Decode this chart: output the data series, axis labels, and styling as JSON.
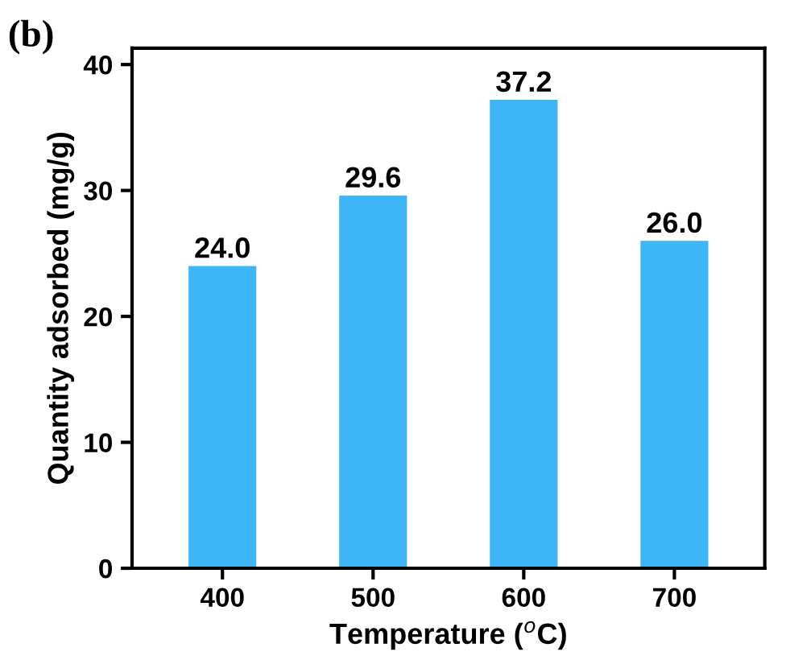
{
  "chart_data": {
    "type": "bar",
    "xlabel": "Temperature ($^{o}$C)",
    "ylabel": "Quantity adsorbed (mg/g)",
    "categories": [
      "400",
      "500",
      "600",
      "700"
    ],
    "values": [
      24.0,
      29.6,
      37.2,
      26.0
    ],
    "color": "#3db5f7",
    "ylim": [
      0,
      41.3
    ],
    "yticks": [
      0,
      10,
      20,
      30,
      40
    ],
    "value_labels": [
      "24.0",
      "29.6",
      "37.2",
      "26.0"
    ],
    "grid": false,
    "legend": false,
    "annotations": [
      "(b)"
    ]
  }
}
